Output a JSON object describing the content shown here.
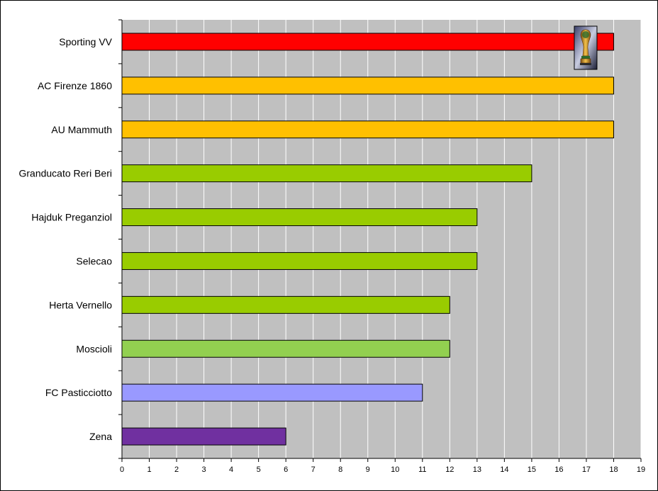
{
  "chart_data": {
    "type": "bar",
    "orientation": "horizontal",
    "title": "",
    "xlabel": "",
    "ylabel": "",
    "xlim": [
      0,
      19
    ],
    "grid": true,
    "legend": "none",
    "plot_background": "#c0c0c0",
    "grid_color": "#ffffff",
    "categories": [
      "Sporting VV",
      "AC Firenze 1860",
      "AU Mammuth",
      "Granducato Reri Beri",
      "Hajduk Preganziol",
      "Selecao",
      "Herta Vernello",
      "Moscioli",
      "FC Pasticciotto",
      "Zena"
    ],
    "values": [
      18,
      18,
      18,
      15,
      13,
      13,
      12,
      12,
      11,
      6
    ],
    "colors": [
      "#ff0000",
      "#ffc000",
      "#ffc000",
      "#99cc00",
      "#99cc00",
      "#99cc00",
      "#99cc00",
      "#92d050",
      "#9999ff",
      "#7030a0"
    ],
    "x_ticks": [
      "0",
      "1",
      "2",
      "3",
      "4",
      "5",
      "6",
      "7",
      "8",
      "9",
      "10",
      "11",
      "12",
      "13",
      "14",
      "15",
      "16",
      "17",
      "18",
      "19"
    ],
    "annotation": {
      "type": "trophy-icon",
      "category": "Sporting VV",
      "x_value": 17
    }
  }
}
